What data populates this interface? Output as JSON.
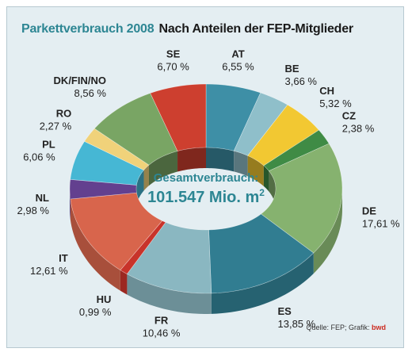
{
  "title": "Parkettverbrauch 2008",
  "subtitle": "Nach Anteilen der FEP-Mitglieder",
  "source_label": "Quelle: FEP; Grafik:",
  "source_brand": "bwd",
  "chart_data": {
    "type": "pie",
    "style": "3d-donut",
    "center_title": "Gesamtverbrauch:",
    "center_value": "101.547 Mio. m",
    "center_value_sup": "2",
    "slices": [
      {
        "name": "AT",
        "label": "6,55 %",
        "value": 6.55,
        "color": "#3e8fa6"
      },
      {
        "name": "BE",
        "label": "3,66 %",
        "value": 3.66,
        "color": "#8fbfca"
      },
      {
        "name": "CH",
        "label": "5,32 %",
        "value": 5.32,
        "color": "#f2c832"
      },
      {
        "name": "CZ",
        "label": "2,38 %",
        "value": 2.38,
        "color": "#3f8b45"
      },
      {
        "name": "DE",
        "label": "17,61 %",
        "value": 17.61,
        "color": "#86b26f"
      },
      {
        "name": "ES",
        "label": "13,85 %",
        "value": 13.85,
        "color": "#317d91"
      },
      {
        "name": "FR",
        "label": "10,46 %",
        "value": 10.46,
        "color": "#8ab7c1"
      },
      {
        "name": "HU",
        "label": "0,99 %",
        "value": 0.99,
        "color": "#c8332a"
      },
      {
        "name": "IT",
        "label": "12,61 %",
        "value": 12.61,
        "color": "#d8654c"
      },
      {
        "name": "NL",
        "label": "2,98 %",
        "value": 2.98,
        "color": "#63408f"
      },
      {
        "name": "PL",
        "label": "6,06 %",
        "value": 6.06,
        "color": "#46b7d4"
      },
      {
        "name": "RO",
        "label": "2,27 %",
        "value": 2.27,
        "color": "#f0d27a"
      },
      {
        "name": "DK/FIN/NO",
        "label": "8,56 %",
        "value": 8.56,
        "color": "#79a564"
      },
      {
        "name": "SE",
        "label": "6,70 %",
        "value": 6.7,
        "color": "#cd3f2f"
      }
    ]
  }
}
